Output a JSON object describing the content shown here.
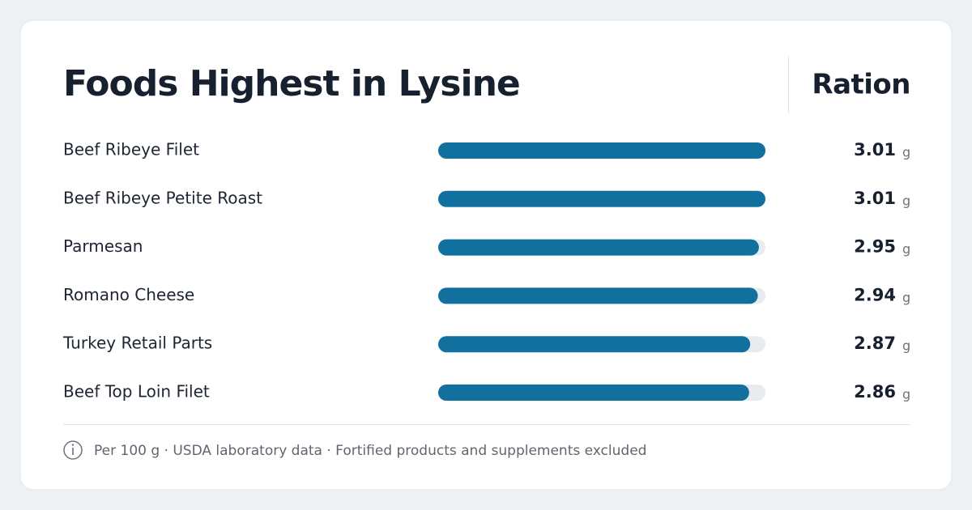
{
  "chart_data": {
    "type": "bar",
    "orientation": "horizontal",
    "title": "Foods Highest in Lysine",
    "value_header": "Ration",
    "categories": [
      "Beef Ribeye Filet",
      "Beef Ribeye Petite Roast",
      "Parmesan",
      "Romano Cheese",
      "Turkey Retail Parts",
      "Beef Top Loin Filet"
    ],
    "values": [
      3.01,
      3.01,
      2.95,
      2.94,
      2.87,
      2.86
    ],
    "unit": "g",
    "color": "#12709f",
    "track_color": "#e8ecf0",
    "xlim": [
      0,
      3.01
    ],
    "footnote": "Per 100 g · USDA laboratory data · Fortified products and supplements excluded"
  }
}
